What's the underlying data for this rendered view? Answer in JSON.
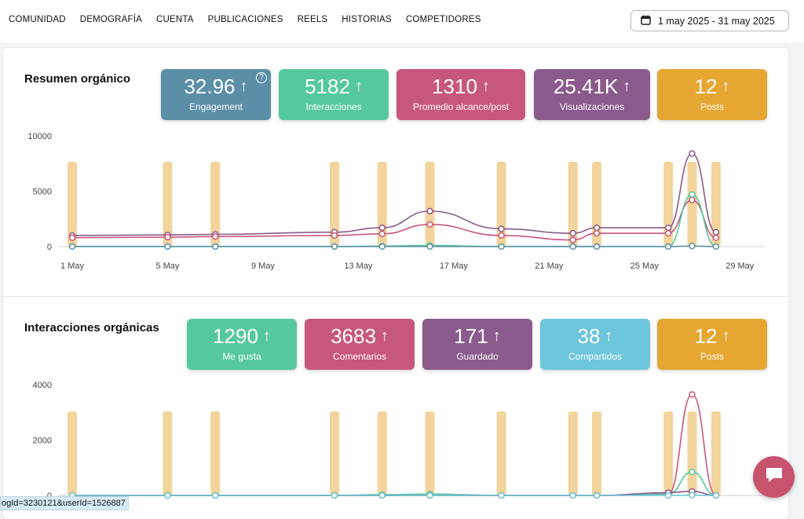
{
  "nav": {
    "tabs": [
      "COMUNIDAD",
      "DEMOGRAFÍA",
      "CUENTA",
      "PUBLICACIONES",
      "REELS",
      "HISTORIAS",
      "COMPETIDORES"
    ],
    "date_range": "1 may 2025 - 31 may 2025",
    "date_icon": "calendar-icon"
  },
  "resumen": {
    "title": "Resumen orgánico",
    "kpis": [
      {
        "value": "32.96",
        "label": "Engagement",
        "color": "#5b8fa8",
        "help": "?"
      },
      {
        "value": "5182",
        "label": "Interacciones",
        "color": "#56c99c"
      },
      {
        "value": "1310",
        "label": "Promedio alcance/post",
        "color": "#c8577c"
      },
      {
        "value": "25.41K",
        "label": "Visualizaciones",
        "color": "#8b5a8c"
      },
      {
        "value": "12",
        "label": "Posts",
        "color": "#e6a632"
      }
    ]
  },
  "interacciones": {
    "title": "Interacciones orgánicas",
    "kpis": [
      {
        "value": "1290",
        "label": "Me gusta",
        "color": "#56c99c"
      },
      {
        "value": "3683",
        "label": "Comentarios",
        "color": "#c8577c"
      },
      {
        "value": "171",
        "label": "Guardado",
        "color": "#8b5a8c"
      },
      {
        "value": "38",
        "label": "Compartidos",
        "color": "#6cc6dc"
      },
      {
        "value": "12",
        "label": "Posts",
        "color": "#e6a632"
      }
    ]
  },
  "chart_data": [
    {
      "type": "line",
      "ylim": [
        0,
        10000
      ],
      "yticks": [
        "0",
        "5000",
        "10000"
      ],
      "xlim": [
        1,
        31
      ],
      "xticks": [
        "1 May",
        "5 May",
        "9 May",
        "13 May",
        "17 May",
        "21 May",
        "25 May",
        "29 May"
      ],
      "post_days": [
        1,
        5,
        7,
        12,
        14,
        16,
        19,
        22,
        23,
        26,
        27,
        28
      ],
      "post_bar_color": "#f2d49c",
      "series": [
        {
          "color": "#8b5a8c",
          "points": [
            [
              1,
              1000
            ],
            [
              5,
              1050
            ],
            [
              7,
              1100
            ],
            [
              12,
              1300
            ],
            [
              14,
              1700
            ],
            [
              16,
              3200
            ],
            [
              19,
              1600
            ],
            [
              22,
              1200
            ],
            [
              23,
              1700
            ],
            [
              26,
              1700
            ],
            [
              27,
              8400
            ],
            [
              28,
              1300
            ]
          ]
        },
        {
          "color": "#c8577c",
          "points": [
            [
              1,
              800
            ],
            [
              5,
              850
            ],
            [
              7,
              900
            ],
            [
              12,
              1000
            ],
            [
              14,
              1150
            ],
            [
              16,
              2000
            ],
            [
              19,
              1000
            ],
            [
              22,
              600
            ],
            [
              23,
              1200
            ],
            [
              26,
              1200
            ],
            [
              27,
              4200
            ],
            [
              28,
              800
            ]
          ]
        },
        {
          "color": "#56c99c",
          "points": [
            [
              1,
              0
            ],
            [
              5,
              0
            ],
            [
              7,
              0
            ],
            [
              12,
              0
            ],
            [
              14,
              50
            ],
            [
              16,
              100
            ],
            [
              19,
              0
            ],
            [
              22,
              0
            ],
            [
              23,
              0
            ],
            [
              26,
              0
            ],
            [
              27,
              4700
            ],
            [
              28,
              0
            ]
          ]
        },
        {
          "color": "#5b8fa8",
          "points": [
            [
              1,
              0
            ],
            [
              5,
              0
            ],
            [
              7,
              0
            ],
            [
              12,
              0
            ],
            [
              14,
              0
            ],
            [
              16,
              0
            ],
            [
              19,
              0
            ],
            [
              22,
              0
            ],
            [
              23,
              0
            ],
            [
              26,
              0
            ],
            [
              27,
              50
            ],
            [
              28,
              0
            ]
          ]
        }
      ]
    },
    {
      "type": "line",
      "ylim": [
        0,
        4000
      ],
      "yticks": [
        "0",
        "2000",
        "4000"
      ],
      "xlim": [
        1,
        31
      ],
      "post_days": [
        1,
        5,
        7,
        12,
        14,
        16,
        19,
        22,
        23,
        26,
        27,
        28
      ],
      "post_bar_color": "#f2d49c",
      "series": [
        {
          "color": "#c8577c",
          "points": [
            [
              1,
              0
            ],
            [
              5,
              0
            ],
            [
              7,
              0
            ],
            [
              12,
              0
            ],
            [
              14,
              0
            ],
            [
              16,
              50
            ],
            [
              19,
              0
            ],
            [
              22,
              0
            ],
            [
              23,
              0
            ],
            [
              26,
              50
            ],
            [
              27,
              3650
            ],
            [
              28,
              0
            ]
          ]
        },
        {
          "color": "#56c99c",
          "points": [
            [
              1,
              0
            ],
            [
              5,
              0
            ],
            [
              7,
              0
            ],
            [
              12,
              0
            ],
            [
              14,
              30
            ],
            [
              16,
              50
            ],
            [
              19,
              0
            ],
            [
              22,
              0
            ],
            [
              23,
              0
            ],
            [
              26,
              50
            ],
            [
              27,
              850
            ],
            [
              28,
              0
            ]
          ]
        },
        {
          "color": "#8b5a8c",
          "points": [
            [
              1,
              0
            ],
            [
              5,
              0
            ],
            [
              7,
              0
            ],
            [
              12,
              0
            ],
            [
              14,
              0
            ],
            [
              16,
              0
            ],
            [
              19,
              0
            ],
            [
              22,
              0
            ],
            [
              23,
              0
            ],
            [
              26,
              100
            ],
            [
              27,
              150
            ],
            [
              28,
              0
            ]
          ]
        },
        {
          "color": "#6cc6dc",
          "points": [
            [
              1,
              0
            ],
            [
              5,
              0
            ],
            [
              7,
              0
            ],
            [
              12,
              0
            ],
            [
              14,
              0
            ],
            [
              16,
              0
            ],
            [
              19,
              0
            ],
            [
              22,
              0
            ],
            [
              23,
              0
            ],
            [
              26,
              0
            ],
            [
              27,
              10
            ],
            [
              28,
              0
            ]
          ]
        }
      ]
    }
  ],
  "status_url": "ogId=3230121&userId=1526887",
  "chat_icon": "chat-bubble-icon"
}
